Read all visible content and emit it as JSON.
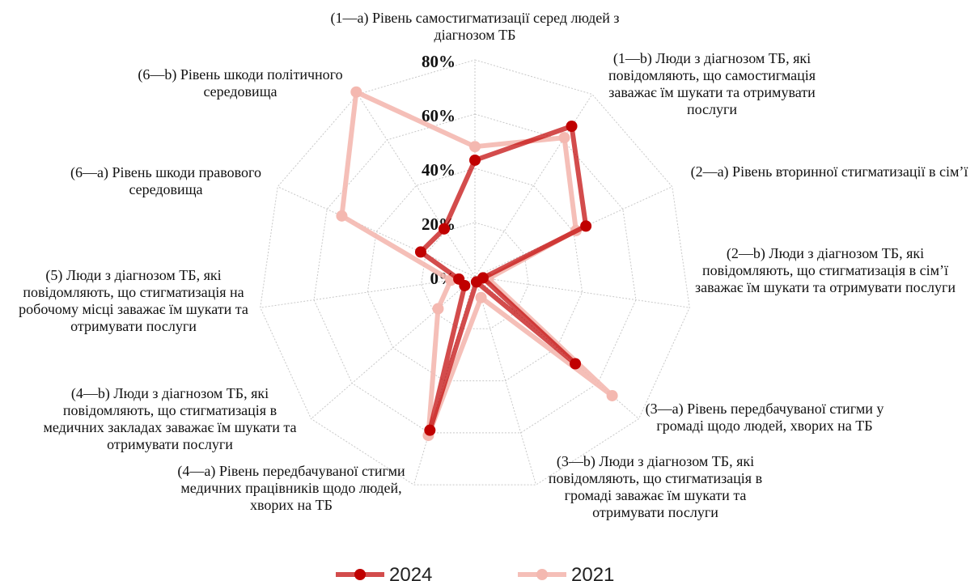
{
  "chart_data": {
    "type": "radar",
    "categories": [
      "(1—a) Рівень самостигматизації серед людей з діагнозом ТБ",
      "(1—b) Люди з діагнозом ТБ, які повідомляють, що самостигмація заважає їм шукати та отримувати послуги",
      "(2—a) Рівень вторинної стигматизації в сім’ї",
      "(2—b) Люди з діагнозом ТБ, які повідомляють, що стигматизація в сім’ї заважає їм шукати та отримувати послуги",
      "(3—a) Рівень передбачуваної стигми у громаді щодо людей, хворих на ТБ",
      "(3—b) Люди з діагнозом ТБ, які повідомляють, що стигматизація в громаді заважає їм шукати та отримувати послуги",
      "(4—a) Рівень передбачуваної стигми медичних працівників щодо людей, хворих на ТБ",
      "(4—b) Люди з діагнозом ТБ, які повідомляють, що стигматизація в медичних закладах заважає їм шукати та отримувати послуги",
      "(5) Люди з діагнозом ТБ, які повідомляють, що стигматизація на робочому місці заважає їм шукати та отримувати послуги",
      "(6—a) Рівень шкоди правового середовища",
      "(6—b) Рівень шкоди політичного середовища"
    ],
    "series": [
      {
        "name": "2024",
        "color": "#c00000",
        "values": [
          43,
          66,
          45,
          3,
          49,
          2,
          59,
          5,
          6,
          22,
          21
        ]
      },
      {
        "name": "2021",
        "color": "#f4b8b0",
        "values": [
          48,
          61,
          41,
          5,
          67,
          8,
          61,
          18,
          9,
          54,
          81
        ]
      }
    ],
    "ylim": [
      0,
      80
    ],
    "yticks": [
      {
        "value": 0,
        "label": "0%"
      },
      {
        "value": 20,
        "label": "20%"
      },
      {
        "value": 40,
        "label": "40%"
      },
      {
        "value": 60,
        "label": "60%"
      },
      {
        "value": 80,
        "label": "80%"
      }
    ],
    "grid": true
  }
}
